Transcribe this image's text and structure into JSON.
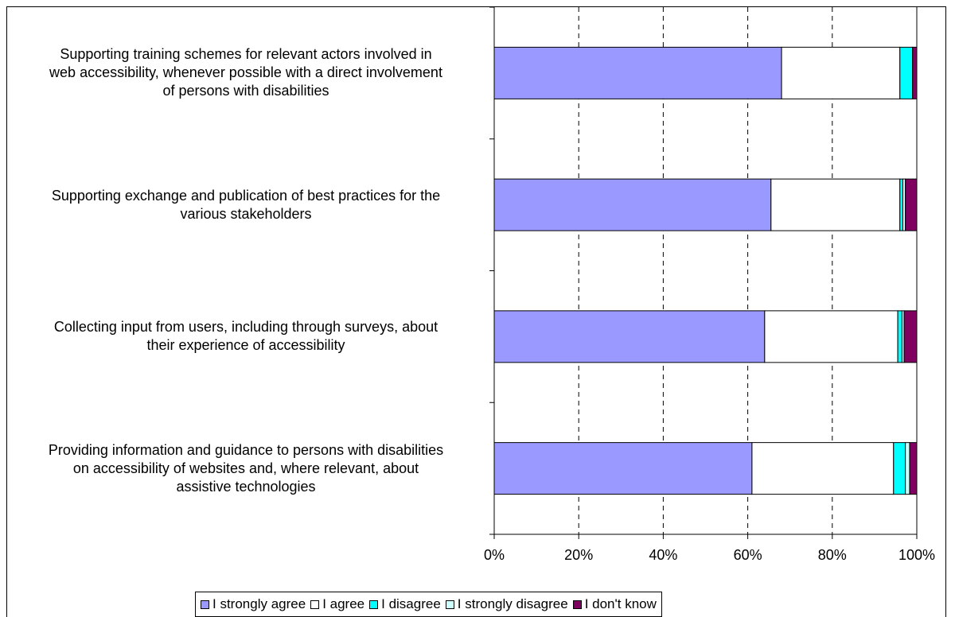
{
  "chart_data": {
    "type": "bar",
    "orientation": "horizontal",
    "stacked": "percent",
    "categories": [
      "Supporting training schemes for relevant actors involved in\nweb accessibility, whenever possible with a direct involvement\nof persons with disabilities",
      "Supporting exchange and publication of best practices for the\nvarious stakeholders",
      "Collecting input from users, including through surveys, about\ntheir experience of accessibility",
      "Providing information and guidance to persons with disabilities\non accessibility of websites and, where relevant, about\nassistive technologies"
    ],
    "series": [
      {
        "name": "I strongly agree",
        "color": "#9999ff",
        "values": [
          68,
          65.5,
          64,
          61
        ]
      },
      {
        "name": "I agree",
        "color": "#ffffff",
        "values": [
          28,
          30.5,
          31.5,
          33.5
        ]
      },
      {
        "name": "I disagree",
        "color": "#00ffff",
        "values": [
          3,
          0.7,
          1,
          2.8
        ]
      },
      {
        "name": "I strongly disagree",
        "color": "#ccffff",
        "values": [
          0,
          0.6,
          0.5,
          1
        ]
      },
      {
        "name": "I don't know",
        "color": "#800060",
        "values": [
          1,
          2.7,
          3,
          1.7
        ]
      }
    ],
    "xlim": [
      0,
      100
    ],
    "xticks": [
      "0%",
      "20%",
      "40%",
      "60%",
      "80%",
      "100%"
    ],
    "grid": "vertical dashed",
    "legend_position": "bottom"
  }
}
